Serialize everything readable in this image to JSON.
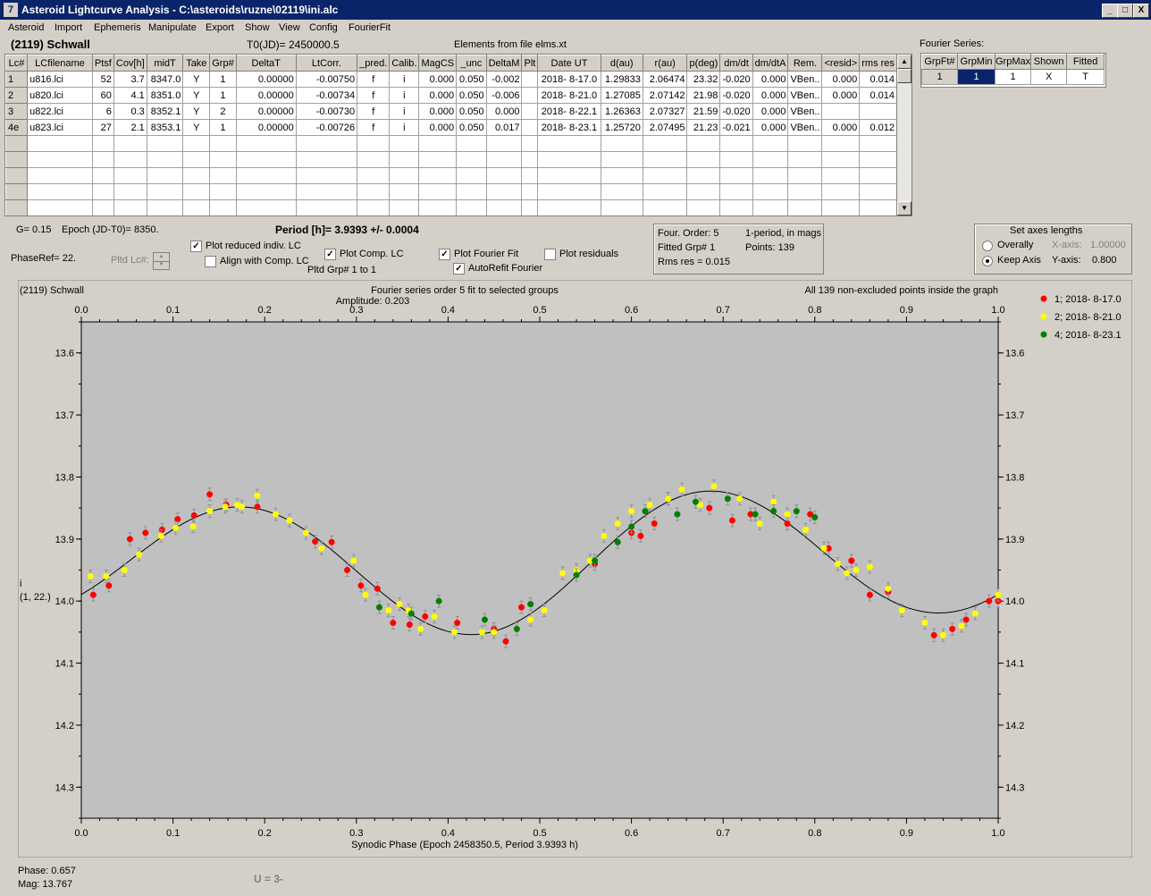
{
  "window": {
    "app_icon": "7",
    "title": "Asteroid Lightcurve Analysis - C:\\asteroids\\ruzne\\02119\\ini.alc",
    "min_glyph": "_",
    "max_glyph": "□",
    "close_glyph": "X"
  },
  "menu": [
    "Asteroid",
    "Import",
    "Ephemeris",
    "Manipulate",
    "Export",
    "Show",
    "View",
    "Config",
    "FourierFit"
  ],
  "header": {
    "asteroid": "(2119) Schwall",
    "t0": "T0(JD)= 2450000.5",
    "elements": "Elements from file elms.xt",
    "fourier_series_label": "Fourier Series:"
  },
  "table": {
    "columns": [
      "Lc#",
      "LCfilename",
      "Ptsf",
      "Cov[h]",
      "midT",
      "Take",
      "Grp#",
      "DeltaT",
      "LtCorr.",
      "_pred.",
      "Calib.",
      "MagCS",
      "_unc",
      "DeltaM",
      "Plt",
      "Date UT",
      "d(au)",
      "r(au)",
      "p(deg)",
      "dm/dt",
      "dm/dtA",
      "Rem.",
      "<resid>",
      "rms res"
    ],
    "rows": [
      [
        "1",
        "u816.lci",
        "52",
        "3.7",
        "8347.0",
        "Y",
        "1",
        "0.00000",
        "-0.00750",
        "f",
        "i",
        "0.000",
        "0.050",
        "-0.002",
        "",
        "2018- 8-17.0",
        "1.29833",
        "2.06474",
        "23.32",
        "-0.020",
        "0.000",
        "VBen..",
        "0.000",
        "0.014"
      ],
      [
        "2",
        "u820.lci",
        "60",
        "4.1",
        "8351.0",
        "Y",
        "1",
        "0.00000",
        "-0.00734",
        "f",
        "i",
        "0.000",
        "0.050",
        "-0.006",
        "",
        "2018- 8-21.0",
        "1.27085",
        "2.07142",
        "21.98",
        "-0.020",
        "0.000",
        "VBen..",
        "0.000",
        "0.014"
      ],
      [
        "3",
        "u822.lci",
        "6",
        "0.3",
        "8352.1",
        "Y",
        "2",
        "0.00000",
        "-0.00730",
        "f",
        "i",
        "0.000",
        "0.050",
        "0.000",
        "",
        "2018- 8-22.1",
        "1.26363",
        "2.07327",
        "21.59",
        "-0.020",
        "0.000",
        "VBen..",
        "",
        ""
      ],
      [
        "4e",
        "u823.lci",
        "27",
        "2.1",
        "8353.1",
        "Y",
        "1",
        "0.00000",
        "-0.00726",
        "f",
        "i",
        "0.000",
        "0.050",
        "0.017",
        "",
        "2018- 8-23.1",
        "1.25720",
        "2.07495",
        "21.23",
        "-0.021",
        "0.000",
        "VBen..",
        "0.000",
        "0.012"
      ]
    ],
    "empty_rows": 5
  },
  "scroll": {
    "up": "▲",
    "down": "▼",
    "spin_up": "▲",
    "spin_down": "▼"
  },
  "fourier_table": {
    "columns": [
      "GrpFt#",
      "GrpMin",
      "GrpMax",
      "Shown",
      "Fitted"
    ],
    "rows": [
      [
        "1",
        "1",
        "1",
        "X",
        "T"
      ]
    ]
  },
  "controls": {
    "g": "G= 0.15",
    "epoch": "Epoch (JD-T0)= 8350.",
    "period": "Period [h]= 3.9393 +/- 0.0004",
    "phase_ref": "PhaseRef= 22.",
    "pltd_lc": "Pltd Lc#:",
    "plot_reduced": "Plot reduced indiv. LC",
    "align_comp": "Align with Comp. LC",
    "plot_comp": "Plot Comp. LC",
    "pltd_grp": "Pltd Grp#  1   to   1",
    "plot_fourier": "Plot Fourier Fit",
    "autorefit": "AutoRefit Fourier",
    "plot_residuals": "Plot residuals",
    "check_mark": "✓",
    "four_order": "Four. Order:  5",
    "one_period": "1-period, in mags",
    "fitted_grp": "Fitted Grp# 1",
    "points": "Points: 139",
    "rms_res": "Rms res     = 0.015",
    "set_axes": "Set axes lengths",
    "overally": "Overally",
    "keep_axis": "Keep Axis",
    "x_axis_label": "X-axis:",
    "x_axis_val": "1.00000",
    "y_axis_label": "Y-axis:",
    "y_axis_val": "0.800"
  },
  "footer": {
    "phase": "Phase:  0.657",
    "mag": "Mag:    13.767",
    "u": "U = 3-"
  },
  "chart_data": {
    "type": "scatter",
    "title": "Fourier series order 5 fit to selected groups",
    "subtitle": "Amplitude: 0.203",
    "top_left": "(2119) Schwall",
    "top_right": "All 139 non-excluded points inside the graph",
    "xlabel": "Synodic Phase (Epoch 2458350.5, Period 3.9393 h)",
    "ylabel": "i",
    "ylabel2": "(1, 22.)",
    "xlim": [
      0,
      1
    ],
    "ylim": [
      13.55,
      14.35
    ],
    "y_inverted": true,
    "xticks": [
      "0.0",
      "0.1",
      "0.2",
      "0.3",
      "0.4",
      "0.5",
      "0.6",
      "0.7",
      "0.8",
      "0.9",
      "1.0"
    ],
    "yticks": [
      "13.6",
      "13.7",
      "13.8",
      "13.9",
      "14.0",
      "14.1",
      "14.2",
      "14.3"
    ],
    "legend_position": "right",
    "colors": {
      "s1": "#ff0000",
      "s2": "#ffff00",
      "s3": "#008000",
      "plot_bg": "#c0c0c0",
      "fit": "#000000"
    },
    "series": [
      {
        "name": "1; 2018- 8-17.0",
        "color": "#ff0000",
        "x": [
          0.013,
          0.03,
          0.053,
          0.07,
          0.088,
          0.105,
          0.123,
          0.14,
          0.158,
          0.192,
          0.255,
          0.273,
          0.29,
          0.305,
          0.323,
          0.34,
          0.358,
          0.375,
          0.41,
          0.45,
          0.463,
          0.48,
          0.56,
          0.6,
          0.61,
          0.625,
          0.64,
          0.685,
          0.71,
          0.73,
          0.77,
          0.795,
          0.815,
          0.84,
          0.86,
          0.88,
          0.93,
          0.95,
          0.965,
          0.99,
          1.0
        ],
        "y": [
          13.99,
          13.975,
          13.9,
          13.89,
          13.885,
          13.868,
          13.862,
          13.828,
          13.845,
          13.848,
          13.904,
          13.905,
          13.95,
          13.975,
          13.98,
          14.035,
          14.038,
          14.025,
          14.035,
          14.045,
          14.065,
          14.01,
          13.94,
          13.89,
          13.895,
          13.875,
          13.835,
          13.85,
          13.87,
          13.86,
          13.875,
          13.86,
          13.915,
          13.935,
          13.99,
          13.985,
          14.055,
          14.045,
          14.03,
          14.0,
          14.0
        ]
      },
      {
        "name": "2; 2018- 8-21.0",
        "color": "#ffff00",
        "x": [
          0.01,
          0.027,
          0.047,
          0.063,
          0.087,
          0.103,
          0.122,
          0.14,
          0.157,
          0.17,
          0.175,
          0.192,
          0.212,
          0.227,
          0.245,
          0.262,
          0.297,
          0.31,
          0.335,
          0.347,
          0.357,
          0.37,
          0.385,
          0.407,
          0.437,
          0.45,
          0.49,
          0.505,
          0.525,
          0.54,
          0.555,
          0.57,
          0.585,
          0.6,
          0.62,
          0.64,
          0.655,
          0.675,
          0.69,
          0.718,
          0.74,
          0.755,
          0.77,
          0.79,
          0.81,
          0.825,
          0.835,
          0.845,
          0.86,
          0.88,
          0.895,
          0.92,
          0.94,
          0.96,
          0.975,
          1.0
        ],
        "y": [
          13.96,
          13.96,
          13.95,
          13.925,
          13.895,
          13.882,
          13.88,
          13.855,
          13.848,
          13.845,
          13.848,
          13.83,
          13.86,
          13.87,
          13.89,
          13.915,
          13.935,
          13.99,
          14.015,
          14.005,
          14.015,
          14.045,
          14.025,
          14.05,
          14.05,
          14.05,
          14.03,
          14.015,
          13.955,
          13.95,
          13.935,
          13.895,
          13.875,
          13.855,
          13.845,
          13.835,
          13.82,
          13.845,
          13.815,
          13.835,
          13.875,
          13.84,
          13.86,
          13.885,
          13.915,
          13.94,
          13.955,
          13.95,
          13.945,
          13.98,
          14.015,
          14.035,
          14.055,
          14.04,
          14.02,
          13.99
        ]
      },
      {
        "name": "4; 2018- 8-23.1",
        "color": "#008000",
        "x": [
          0.325,
          0.36,
          0.39,
          0.44,
          0.475,
          0.49,
          0.54,
          0.56,
          0.585,
          0.6,
          0.615,
          0.65,
          0.67,
          0.705,
          0.735,
          0.755,
          0.78,
          0.8
        ],
        "y": [
          14.01,
          14.02,
          14.0,
          14.03,
          14.045,
          14.005,
          13.958,
          13.935,
          13.905,
          13.88,
          13.855,
          13.86,
          13.84,
          13.835,
          13.86,
          13.855,
          13.855,
          13.865
        ]
      }
    ]
  }
}
